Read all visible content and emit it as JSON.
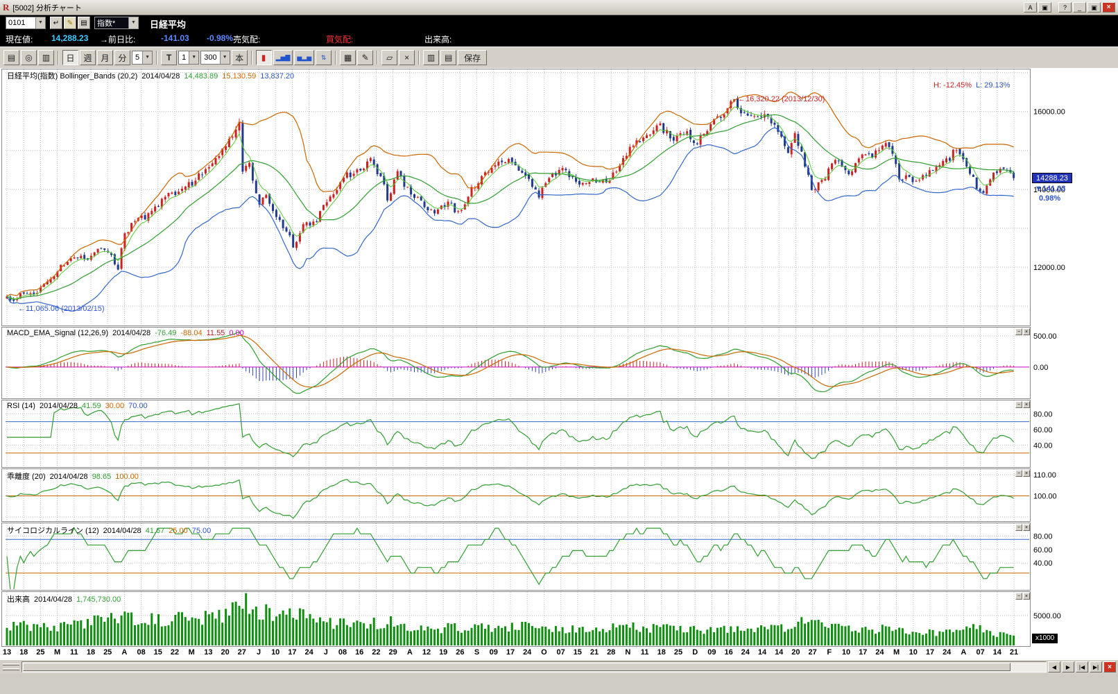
{
  "titlebar": {
    "app_icon": "R",
    "title": "[5002] 分析チャート",
    "buttons": {
      "annotate": "A",
      "layout": "▣",
      "help": "?",
      "minimize": "_",
      "maximize": "▣",
      "close": "×"
    }
  },
  "symbol_bar": {
    "code": "0101",
    "category": "指数*",
    "name": "日経平均"
  },
  "quote_bar": {
    "current_label": "現在値:",
    "current_value": "14,288.23",
    "change_label": "→前日比:",
    "change_value": "-141.03",
    "change_pct": "-0.98%",
    "ask_label": "売気配:",
    "ask_value": "",
    "bid_label": "買気配:",
    "bid_value": "",
    "volume_label": "出来高:",
    "volume_value": ""
  },
  "icons": {
    "dropdown": "▼",
    "enter": "↵",
    "edit": "✎",
    "memo": "▤",
    "min": "−",
    "close": "×",
    "left": "◀",
    "right": "▶",
    "start": "|◀",
    "end": "▶|"
  },
  "toolbar": {
    "print": "▤",
    "zoom": "◎",
    "page": "▥",
    "day": "日",
    "week": "週",
    "month": "月",
    "minute": "分",
    "minute_size": "5",
    "tick": "T",
    "tick_size": "1",
    "bar_count": "300",
    "bar_unit": "本",
    "candle": "▮",
    "bars": "▂▅▇",
    "bars2": "▅▂▅",
    "updown": "⇅",
    "grid": "▦",
    "pencil": "✎",
    "eraser": "▱",
    "clear": "×",
    "copy": "▥",
    "newwin": "▤",
    "save": "保存"
  },
  "panels": {
    "main": {
      "title": "日経平均(指数) Bollinger_Bands (20,2)",
      "date": "2014/04/28",
      "mid": "14,483.89",
      "upper": "15,130.59",
      "lower": "13,837.20",
      "high_label": "H: -12.45%",
      "low_label": "L: 29.13%",
      "annotation_high": "←16,320.22 (2013/12/30)",
      "annotation_low": "←11,065.06 (2013/02/15)",
      "price_badge": "14288.23",
      "price_change": "▼141.03",
      "price_pct": "0.98%"
    },
    "macd": {
      "title": "MACD_EMA_Signal (12,26,9)",
      "date": "2014/04/28",
      "v1": "-76.49",
      "v2": "-88.04",
      "v3": "11.55",
      "v4": "0.00"
    },
    "rsi": {
      "title": "RSI (14)",
      "date": "2014/04/28",
      "v1": "41.59",
      "v2": "30.00",
      "v3": "70.00"
    },
    "kairi": {
      "title": "乖離度 (20)",
      "date": "2014/04/28",
      "v1": "98.65",
      "v2": "100.00"
    },
    "psych": {
      "title": "サイコロジカルライン (12)",
      "date": "2014/04/28",
      "v1": "41.67",
      "v2": "25.00",
      "v3": "75.00"
    },
    "volume": {
      "title": "出来高",
      "date": "2014/04/28",
      "v1": "1,745,730.00",
      "unit_badge": "x1000"
    }
  },
  "chart_data": {
    "type": "candlestick",
    "symbol": "日経平均 (Nikkei 225 daily)",
    "bars": 300,
    "x_labels": [
      "13",
      "18",
      "25",
      "M",
      "11",
      "18",
      "25",
      "A",
      "08",
      "15",
      "22",
      "M",
      "13",
      "20",
      "27",
      "J",
      "10",
      "17",
      "24",
      "J",
      "08",
      "16",
      "22",
      "29",
      "A",
      "12",
      "19",
      "26",
      "S",
      "09",
      "17",
      "24",
      "O",
      "07",
      "15",
      "21",
      "28",
      "N",
      "11",
      "18",
      "25",
      "D",
      "09",
      "16",
      "24",
      "14",
      "14",
      "20",
      "27",
      "F",
      "10",
      "17",
      "24",
      "M",
      "10",
      "17",
      "24",
      "A",
      "07",
      "14",
      "21"
    ],
    "price_anchors": [
      [
        0,
        11250
      ],
      [
        2,
        11150
      ],
      [
        5,
        11380
      ],
      [
        8,
        11250
      ],
      [
        12,
        11600
      ],
      [
        15,
        11930
      ],
      [
        20,
        12240
      ],
      [
        24,
        12220
      ],
      [
        27,
        12470
      ],
      [
        30,
        12400
      ],
      [
        33,
        12000
      ],
      [
        35,
        12830
      ],
      [
        38,
        13190
      ],
      [
        42,
        13320
      ],
      [
        47,
        13850
      ],
      [
        51,
        13880
      ],
      [
        55,
        14180
      ],
      [
        58,
        14410
      ],
      [
        61,
        14607
      ],
      [
        64,
        15100
      ],
      [
        67,
        15380
      ],
      [
        69,
        15700
      ],
      [
        70,
        14483
      ],
      [
        72,
        14612
      ],
      [
        75,
        13589
      ],
      [
        77,
        13920
      ],
      [
        80,
        13261
      ],
      [
        84,
        12877
      ],
      [
        85,
        12445
      ],
      [
        88,
        13033
      ],
      [
        92,
        13245
      ],
      [
        95,
        13677
      ],
      [
        100,
        14310
      ],
      [
        105,
        14506
      ],
      [
        108,
        14808
      ],
      [
        112,
        14130
      ],
      [
        113,
        13661
      ],
      [
        116,
        14466
      ],
      [
        120,
        13825
      ],
      [
        124,
        13605
      ],
      [
        127,
        13396
      ],
      [
        131,
        13660
      ],
      [
        134,
        13389
      ],
      [
        138,
        13978
      ],
      [
        142,
        14423
      ],
      [
        146,
        14742
      ],
      [
        150,
        14760
      ],
      [
        153,
        14456
      ],
      [
        158,
        13853
      ],
      [
        162,
        14404
      ],
      [
        166,
        14486
      ],
      [
        170,
        14088
      ],
      [
        174,
        14250
      ],
      [
        178,
        14180
      ],
      [
        182,
        14588
      ],
      [
        186,
        15165
      ],
      [
        190,
        15365
      ],
      [
        194,
        15620
      ],
      [
        198,
        15300
      ],
      [
        202,
        15403
      ],
      [
        205,
        15152
      ],
      [
        208,
        15587
      ],
      [
        212,
        15870
      ],
      [
        216,
        16291
      ],
      [
        218,
        15908
      ],
      [
        221,
        15880
      ],
      [
        224,
        15912
      ],
      [
        227,
        15734
      ],
      [
        230,
        15392
      ],
      [
        232,
        15005
      ],
      [
        234,
        15383
      ],
      [
        236,
        14914
      ],
      [
        239,
        14008
      ],
      [
        242,
        14155
      ],
      [
        246,
        14800
      ],
      [
        250,
        14313
      ],
      [
        253,
        14865
      ],
      [
        257,
        14841
      ],
      [
        260,
        15134
      ],
      [
        262,
        15120
      ],
      [
        265,
        14330
      ],
      [
        268,
        14277
      ],
      [
        271,
        14224
      ],
      [
        274,
        14475
      ],
      [
        277,
        14696
      ],
      [
        280,
        14791
      ],
      [
        282,
        15072
      ],
      [
        284,
        14820
      ],
      [
        287,
        14300
      ],
      [
        288,
        13960
      ],
      [
        290,
        13910
      ],
      [
        293,
        14417
      ],
      [
        296,
        14512
      ],
      [
        298,
        14429.26
      ],
      [
        299,
        14288.23
      ]
    ],
    "volume_anchors": [
      [
        0,
        3400
      ],
      [
        10,
        3100
      ],
      [
        20,
        3600
      ],
      [
        33,
        4400
      ],
      [
        40,
        4600
      ],
      [
        55,
        4300
      ],
      [
        64,
        5200
      ],
      [
        69,
        8800
      ],
      [
        72,
        6400
      ],
      [
        80,
        5000
      ],
      [
        85,
        5600
      ],
      [
        95,
        3800
      ],
      [
        105,
        3300
      ],
      [
        113,
        4000
      ],
      [
        120,
        2800
      ],
      [
        134,
        3000
      ],
      [
        146,
        3100
      ],
      [
        158,
        3300
      ],
      [
        170,
        2600
      ],
      [
        186,
        3200
      ],
      [
        200,
        2800
      ],
      [
        212,
        2600
      ],
      [
        216,
        3200
      ],
      [
        225,
        2700
      ],
      [
        232,
        3100
      ],
      [
        239,
        4300
      ],
      [
        246,
        3100
      ],
      [
        257,
        2700
      ],
      [
        262,
        2900
      ],
      [
        271,
        2200
      ],
      [
        282,
        2400
      ],
      [
        288,
        3000
      ],
      [
        294,
        2000
      ],
      [
        299,
        1745.73
      ]
    ],
    "overrides": {
      "high_216": 16320.22,
      "low_2": 11065.06,
      "close_298": 14429.26,
      "close_299": 14288.23,
      "volume_299": 1745.73
    },
    "main_axis": {
      "ylim": [
        10500,
        17100
      ],
      "grid": [
        11000,
        12000,
        13000,
        14000,
        15000,
        16000,
        17000
      ],
      "labeled": [
        16000,
        14000,
        12000
      ]
    },
    "macd_axis": {
      "grid": [
        500
      ],
      "labeled": [
        500,
        0
      ],
      "guides": [
        {
          "v": 0,
          "c": "#cc00cc"
        }
      ]
    },
    "rsi_axis": {
      "ylim": [
        12,
        98
      ],
      "grid": [
        80,
        60,
        40
      ],
      "labeled": [
        80,
        60,
        40
      ],
      "guides": [
        {
          "v": 70,
          "c": "#3366cc"
        },
        {
          "v": 30,
          "c": "#cc6600"
        }
      ]
    },
    "kairi_axis": {
      "ylim": [
        88,
        113
      ],
      "grid": [
        110,
        100,
        90
      ],
      "labeled": [
        110,
        100
      ],
      "guides": [
        {
          "v": 100,
          "c": "#cc6600"
        }
      ]
    },
    "psych_axis": {
      "ylim": [
        0,
        100
      ],
      "grid": [
        80,
        60,
        40
      ],
      "labeled": [
        80,
        60,
        40
      ],
      "guides": [
        {
          "v": 75,
          "c": "#3366cc"
        },
        {
          "v": 25,
          "c": "#cc6600"
        }
      ]
    },
    "volume_axis": {
      "ylim": [
        0,
        9000
      ],
      "grid": [
        5000
      ],
      "labeled": [
        5000
      ]
    },
    "colors": {
      "up": "#cc2222",
      "down": "#223a8c",
      "bb_upper": "#cc6600",
      "bb_mid": "#2f9e2f",
      "ema_fast": "#55cc33",
      "bb_lower": "#3366cc",
      "macd": "#2f9e2f",
      "signal": "#cc6600",
      "hist_pos": "#cc2222",
      "hist_neg": "#3344bb",
      "zero": "#cc00cc",
      "line": "#2f9e2f",
      "volume": "#0f8f0f",
      "grid": "#bcbcbc",
      "badge_bg": "#2233bb"
    }
  }
}
